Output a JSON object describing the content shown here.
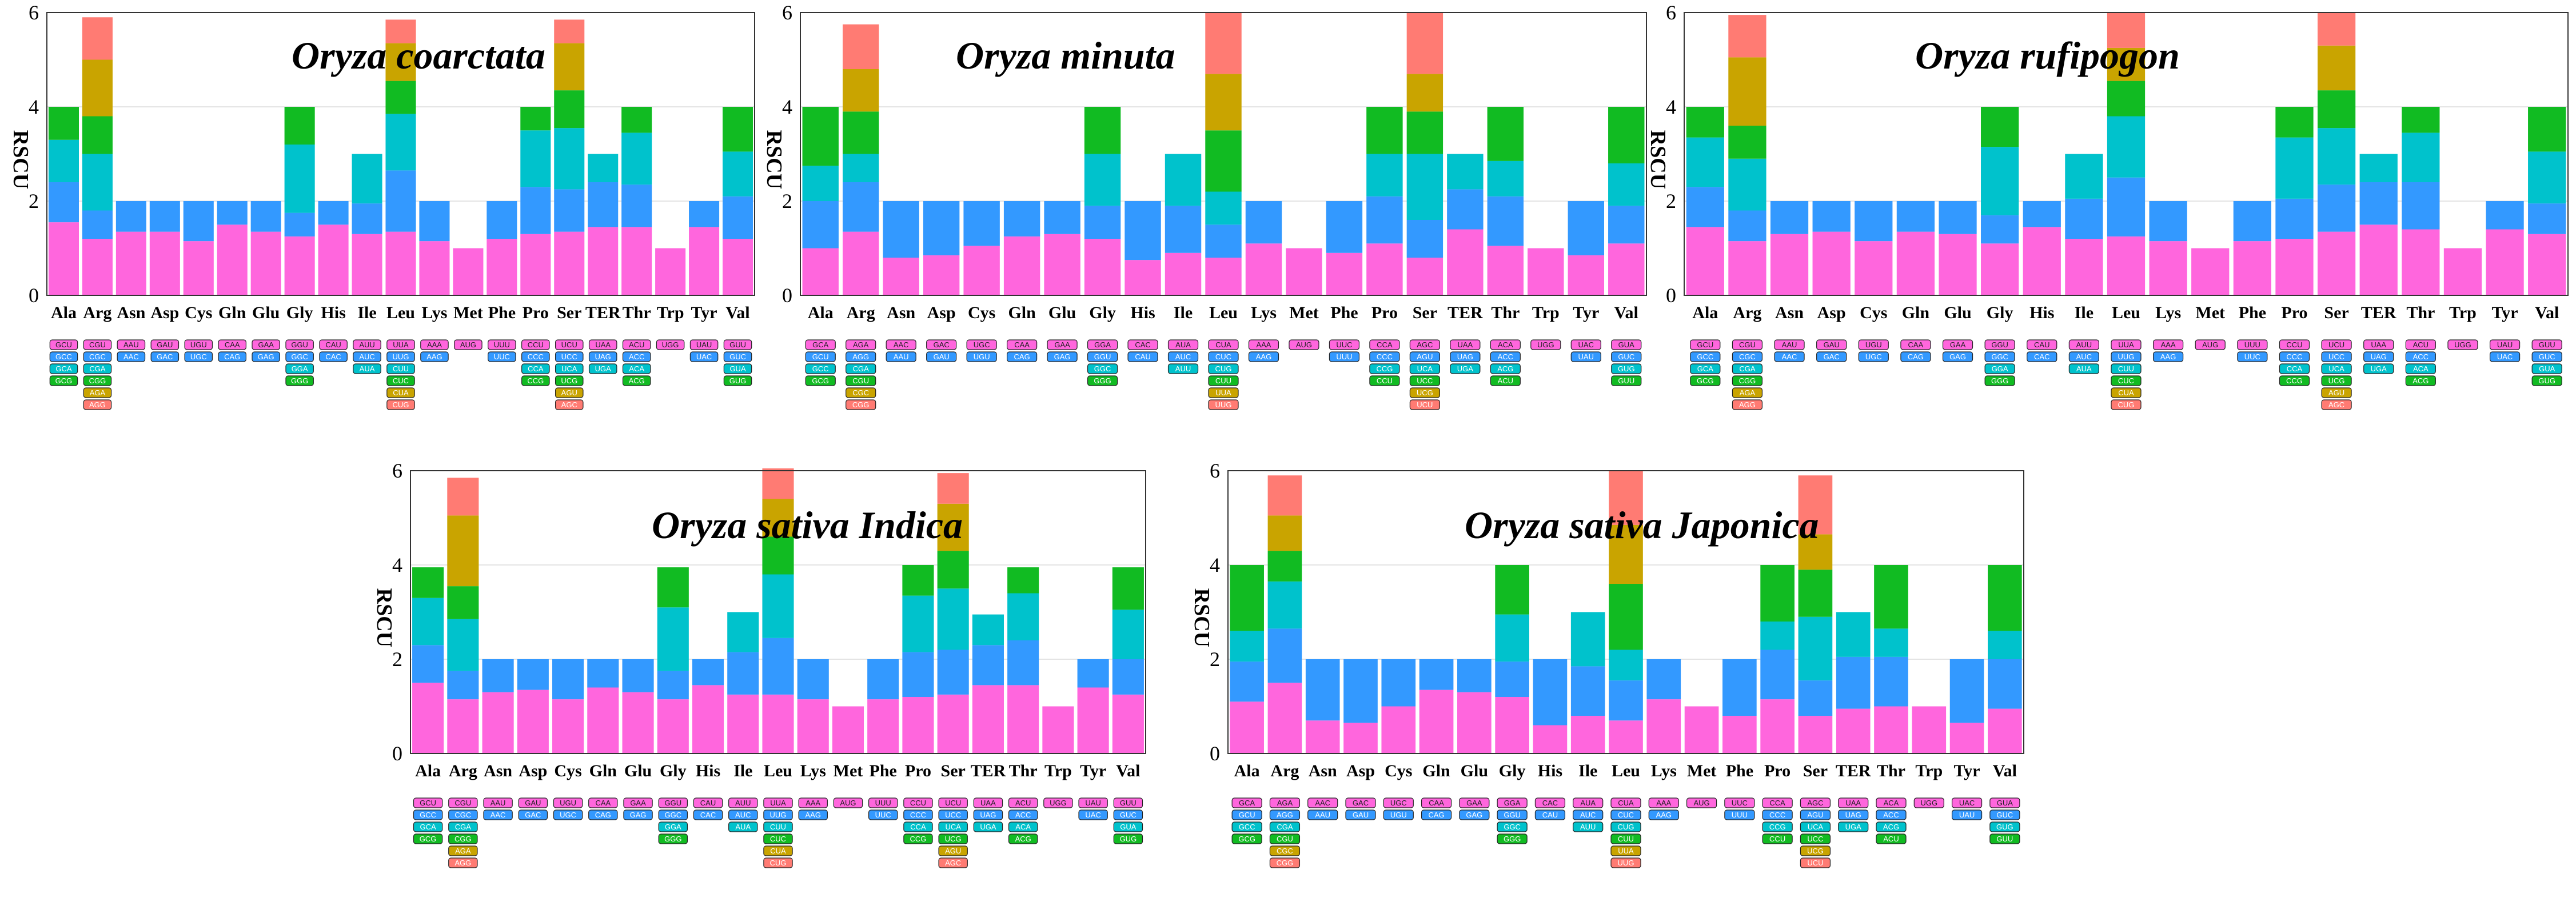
{
  "colors": {
    "c1": "#ff66dd",
    "c2": "#3399ff",
    "c3": "#00c2cc",
    "c4": "#11bb22",
    "c5": "#c9a400",
    "c6": "#ff7b73"
  },
  "y_axis_label": "RSCU",
  "y_ticks": [
    "0",
    "2",
    "4",
    "6"
  ],
  "chart_data": [
    {
      "type": "bar",
      "stacked": true,
      "title": "Oryza coarctata",
      "ylabel": "RSCU",
      "ylim": [
        0,
        6
      ],
      "categories": [
        "Ala",
        "Arg",
        "Asn",
        "Asp",
        "Cys",
        "Gln",
        "Glu",
        "Gly",
        "His",
        "Ile",
        "Leu",
        "Lys",
        "Met",
        "Phe",
        "Pro",
        "Ser",
        "TER",
        "Thr",
        "Trp",
        "Tyr",
        "Val"
      ],
      "stacks": [
        [
          1.55,
          0.85,
          0.9,
          0.7
        ],
        [
          1.2,
          0.6,
          1.2,
          0.8,
          1.2,
          0.9
        ],
        [
          1.35,
          0.65
        ],
        [
          1.35,
          0.65
        ],
        [
          1.15,
          0.85
        ],
        [
          1.5,
          0.5
        ],
        [
          1.35,
          0.65
        ],
        [
          1.25,
          0.5,
          1.45,
          0.8
        ],
        [
          1.5,
          0.5
        ],
        [
          1.3,
          0.65,
          1.05
        ],
        [
          1.35,
          1.3,
          1.2,
          0.7,
          0.8,
          0.5
        ],
        [
          1.15,
          0.85
        ],
        [
          1.0
        ],
        [
          1.2,
          0.8
        ],
        [
          1.3,
          1.0,
          1.2,
          0.5
        ],
        [
          1.35,
          0.9,
          1.3,
          0.8,
          1.0,
          0.5
        ],
        [
          1.45,
          0.95,
          0.6
        ],
        [
          1.45,
          0.9,
          1.1,
          0.55
        ],
        [
          1.0
        ],
        [
          1.45,
          0.55
        ],
        [
          1.2,
          0.9,
          0.95,
          0.95
        ]
      ],
      "codons": [
        [
          "GCU",
          "GCC",
          "GCA",
          "GCG"
        ],
        [
          "CGU",
          "CGC",
          "CGA",
          "CGG",
          "AGA",
          "AGG"
        ],
        [
          "AAU",
          "AAC"
        ],
        [
          "GAU",
          "GAC"
        ],
        [
          "UGU",
          "UGC"
        ],
        [
          "CAA",
          "CAG"
        ],
        [
          "GAA",
          "GAG"
        ],
        [
          "GGU",
          "GGC",
          "GGA",
          "GGG"
        ],
        [
          "CAU",
          "CAC"
        ],
        [
          "AUU",
          "AUC",
          "AUA"
        ],
        [
          "UUA",
          "UUG",
          "CUU",
          "CUC",
          "CUA",
          "CUG"
        ],
        [
          "AAA",
          "AAG"
        ],
        [
          "AUG"
        ],
        [
          "UUU",
          "UUC"
        ],
        [
          "CCU",
          "CCC",
          "CCA",
          "CCG"
        ],
        [
          "UCU",
          "UCC",
          "UCA",
          "UCG",
          "AGU",
          "AGC"
        ],
        [
          "UAA",
          "UAG",
          "UGA"
        ],
        [
          "ACU",
          "ACC",
          "ACA",
          "ACG"
        ],
        [
          "UGG"
        ],
        [
          "UAU",
          "UAC"
        ],
        [
          "GUU",
          "GUC",
          "GUA",
          "GUG"
        ]
      ]
    },
    {
      "type": "bar",
      "stacked": true,
      "title": "Oryza minuta",
      "ylabel": "RSCU",
      "ylim": [
        0,
        6
      ],
      "categories": [
        "Ala",
        "Arg",
        "Asn",
        "Asp",
        "Cys",
        "Gln",
        "Glu",
        "Gly",
        "His",
        "Ile",
        "Leu",
        "Lys",
        "Met",
        "Phe",
        "Pro",
        "Ser",
        "TER",
        "Thr",
        "Trp",
        "Tyr",
        "Val"
      ],
      "stacks": [
        [
          1.0,
          1.0,
          0.75,
          1.25
        ],
        [
          1.35,
          1.05,
          0.6,
          0.9,
          0.9,
          0.95
        ],
        [
          0.8,
          1.2
        ],
        [
          0.85,
          1.15
        ],
        [
          1.05,
          0.95
        ],
        [
          1.25,
          0.75
        ],
        [
          1.3,
          0.7
        ],
        [
          1.2,
          0.7,
          1.1,
          1.0
        ],
        [
          0.75,
          1.25
        ],
        [
          0.9,
          1.0,
          1.1
        ],
        [
          0.8,
          0.7,
          0.7,
          1.3,
          1.2,
          1.3
        ],
        [
          1.1,
          0.9
        ],
        [
          1.0
        ],
        [
          0.9,
          1.1
        ],
        [
          1.1,
          1.0,
          0.9,
          1.0
        ],
        [
          0.8,
          0.8,
          1.4,
          0.9,
          0.8,
          1.3
        ],
        [
          1.4,
          0.85,
          0.75
        ],
        [
          1.05,
          1.05,
          0.75,
          1.15
        ],
        [
          1.0
        ],
        [
          0.85,
          1.15
        ],
        [
          1.1,
          0.8,
          0.9,
          1.2
        ]
      ],
      "codons": [
        [
          "GCA",
          "GCU",
          "GCC",
          "GCG"
        ],
        [
          "AGA",
          "AGG",
          "CGA",
          "CGU",
          "CGC",
          "CGG"
        ],
        [
          "AAC",
          "AAU"
        ],
        [
          "GAC",
          "GAU"
        ],
        [
          "UGC",
          "UGU"
        ],
        [
          "CAA",
          "CAG"
        ],
        [
          "GAA",
          "GAG"
        ],
        [
          "GGA",
          "GGU",
          "GGC",
          "GGG"
        ],
        [
          "CAC",
          "CAU"
        ],
        [
          "AUA",
          "AUC",
          "AUU"
        ],
        [
          "CUA",
          "CUC",
          "CUG",
          "CUU",
          "UUA",
          "UUG"
        ],
        [
          "AAA",
          "AAG"
        ],
        [
          "AUG"
        ],
        [
          "UUC",
          "UUU"
        ],
        [
          "CCA",
          "CCC",
          "CCG",
          "CCU"
        ],
        [
          "AGC",
          "AGU",
          "UCA",
          "UCC",
          "UCG",
          "UCU"
        ],
        [
          "UAA",
          "UAG",
          "UGA"
        ],
        [
          "ACA",
          "ACC",
          "ACG",
          "ACU"
        ],
        [
          "UGG"
        ],
        [
          "UAC",
          "UAU"
        ],
        [
          "GUA",
          "GUC",
          "GUG",
          "GUU"
        ]
      ]
    },
    {
      "type": "bar",
      "stacked": true,
      "title": "Oryza rufipogon",
      "ylabel": "RSCU",
      "ylim": [
        0,
        6
      ],
      "categories": [
        "Ala",
        "Arg",
        "Asn",
        "Asp",
        "Cys",
        "Gln",
        "Glu",
        "Gly",
        "His",
        "Ile",
        "Leu",
        "Lys",
        "Met",
        "Phe",
        "Pro",
        "Ser",
        "TER",
        "Thr",
        "Trp",
        "Tyr",
        "Val"
      ],
      "stacks": [
        [
          1.45,
          0.85,
          1.05,
          0.65
        ],
        [
          1.15,
          0.65,
          1.1,
          0.7,
          1.45,
          0.9
        ],
        [
          1.3,
          0.7
        ],
        [
          1.35,
          0.65
        ],
        [
          1.15,
          0.85
        ],
        [
          1.35,
          0.65
        ],
        [
          1.3,
          0.7
        ],
        [
          1.1,
          0.6,
          1.45,
          0.85
        ],
        [
          1.45,
          0.55
        ],
        [
          1.2,
          0.85,
          0.95
        ],
        [
          1.25,
          1.25,
          1.3,
          0.75,
          0.7,
          0.75
        ],
        [
          1.15,
          0.85
        ],
        [
          1.0
        ],
        [
          1.15,
          0.85
        ],
        [
          1.2,
          0.85,
          1.3,
          0.65
        ],
        [
          1.35,
          1.0,
          1.2,
          0.8,
          0.95,
          0.7
        ],
        [
          1.5,
          0.9,
          0.6
        ],
        [
          1.4,
          1.0,
          1.05,
          0.55
        ],
        [
          1.0
        ],
        [
          1.4,
          0.6
        ],
        [
          1.3,
          0.65,
          1.1,
          0.95
        ]
      ],
      "codons": [
        [
          "GCU",
          "GCC",
          "GCA",
          "GCG"
        ],
        [
          "CGU",
          "CGC",
          "CGA",
          "CGG",
          "AGA",
          "AGG"
        ],
        [
          "AAU",
          "AAC"
        ],
        [
          "GAU",
          "GAC"
        ],
        [
          "UGU",
          "UGC"
        ],
        [
          "CAA",
          "CAG"
        ],
        [
          "GAA",
          "GAG"
        ],
        [
          "GGU",
          "GGC",
          "GGA",
          "GGG"
        ],
        [
          "CAU",
          "CAC"
        ],
        [
          "AUU",
          "AUC",
          "AUA"
        ],
        [
          "UUA",
          "UUG",
          "CUU",
          "CUC",
          "CUA",
          "CUG"
        ],
        [
          "AAA",
          "AAG"
        ],
        [
          "AUG"
        ],
        [
          "UUU",
          "UUC"
        ],
        [
          "CCU",
          "CCC",
          "CCA",
          "CCG"
        ],
        [
          "UCU",
          "UCC",
          "UCA",
          "UCG",
          "AGU",
          "AGC"
        ],
        [
          "UAA",
          "UAG",
          "UGA"
        ],
        [
          "ACU",
          "ACC",
          "ACA",
          "ACG"
        ],
        [
          "UGG"
        ],
        [
          "UAU",
          "UAC"
        ],
        [
          "GUU",
          "GUC",
          "GUA",
          "GUG"
        ]
      ]
    },
    {
      "type": "bar",
      "stacked": true,
      "title": "Oryza sativa Indica",
      "ylabel": "RSCU",
      "ylim": [
        0,
        6
      ],
      "categories": [
        "Ala",
        "Arg",
        "Asn",
        "Asp",
        "Cys",
        "Gln",
        "Glu",
        "Gly",
        "His",
        "Ile",
        "Leu",
        "Lys",
        "Met",
        "Phe",
        "Pro",
        "Ser",
        "TER",
        "Thr",
        "Trp",
        "Tyr",
        "Val"
      ],
      "stacks": [
        [
          1.5,
          0.8,
          1.0,
          0.65
        ],
        [
          1.15,
          0.6,
          1.1,
          0.7,
          1.5,
          0.8
        ],
        [
          1.3,
          0.7
        ],
        [
          1.35,
          0.65
        ],
        [
          1.15,
          0.85
        ],
        [
          1.4,
          0.6
        ],
        [
          1.3,
          0.7
        ],
        [
          1.15,
          0.6,
          1.35,
          0.85
        ],
        [
          1.45,
          0.55
        ],
        [
          1.25,
          0.9,
          0.85
        ],
        [
          1.25,
          1.2,
          1.35,
          0.8,
          0.8,
          0.65
        ],
        [
          1.15,
          0.85
        ],
        [
          1.0
        ],
        [
          1.15,
          0.85
        ],
        [
          1.2,
          0.95,
          1.2,
          0.65
        ],
        [
          1.25,
          0.95,
          1.3,
          0.8,
          1.0,
          0.65
        ],
        [
          1.45,
          0.85,
          0.65
        ],
        [
          1.45,
          0.95,
          1.0,
          0.55
        ],
        [
          1.0
        ],
        [
          1.4,
          0.6
        ],
        [
          1.25,
          0.75,
          1.05,
          0.9
        ]
      ],
      "codons": [
        [
          "GCU",
          "GCC",
          "GCA",
          "GCG"
        ],
        [
          "CGU",
          "CGC",
          "CGA",
          "CGG",
          "AGA",
          "AGG"
        ],
        [
          "AAU",
          "AAC"
        ],
        [
          "GAU",
          "GAC"
        ],
        [
          "UGU",
          "UGC"
        ],
        [
          "CAA",
          "CAG"
        ],
        [
          "GAA",
          "GAG"
        ],
        [
          "GGU",
          "GGC",
          "GGA",
          "GGG"
        ],
        [
          "CAU",
          "CAC"
        ],
        [
          "AUU",
          "AUC",
          "AUA"
        ],
        [
          "UUA",
          "UUG",
          "CUU",
          "CUC",
          "CUA",
          "CUG"
        ],
        [
          "AAA",
          "AAG"
        ],
        [
          "AUG"
        ],
        [
          "UUU",
          "UUC"
        ],
        [
          "CCU",
          "CCC",
          "CCA",
          "CCG"
        ],
        [
          "UCU",
          "UCC",
          "UCA",
          "UCG",
          "AGU",
          "AGC"
        ],
        [
          "UAA",
          "UAG",
          "UGA"
        ],
        [
          "ACU",
          "ACC",
          "ACA",
          "ACG"
        ],
        [
          "UGG"
        ],
        [
          "UAU",
          "UAC"
        ],
        [
          "GUU",
          "GUC",
          "GUA",
          "GUG"
        ]
      ]
    },
    {
      "type": "bar",
      "stacked": true,
      "title": "Oryza sativa Japonica",
      "ylabel": "RSCU",
      "ylim": [
        0,
        6
      ],
      "categories": [
        "Ala",
        "Arg",
        "Asn",
        "Asp",
        "Cys",
        "Gln",
        "Glu",
        "Gly",
        "His",
        "Ile",
        "Leu",
        "Lys",
        "Met",
        "Phe",
        "Pro",
        "Ser",
        "TER",
        "Thr",
        "Trp",
        "Tyr",
        "Val"
      ],
      "stacks": [
        [
          1.1,
          0.85,
          0.65,
          1.4
        ],
        [
          1.5,
          1.15,
          1.0,
          0.65,
          0.75,
          0.85
        ],
        [
          0.7,
          1.3
        ],
        [
          0.65,
          1.35
        ],
        [
          1.0,
          1.0
        ],
        [
          1.35,
          0.65
        ],
        [
          1.3,
          0.7
        ],
        [
          1.2,
          0.75,
          1.0,
          1.05
        ],
        [
          0.6,
          1.4
        ],
        [
          0.8,
          1.05,
          1.15
        ],
        [
          0.7,
          0.85,
          0.65,
          1.4,
          1.25,
          1.15
        ],
        [
          1.15,
          0.85
        ],
        [
          1.0
        ],
        [
          0.8,
          1.2
        ],
        [
          1.15,
          1.05,
          0.6,
          1.2
        ],
        [
          0.8,
          0.75,
          1.35,
          1.0,
          0.75,
          1.25
        ],
        [
          0.95,
          1.1,
          0.95
        ],
        [
          1.0,
          1.05,
          0.6,
          1.35
        ],
        [
          1.0
        ],
        [
          0.65,
          1.35
        ],
        [
          0.95,
          1.05,
          0.6,
          1.4
        ]
      ],
      "codons": [
        [
          "GCA",
          "GCU",
          "GCC",
          "GCG"
        ],
        [
          "AGA",
          "AGG",
          "CGA",
          "CGU",
          "CGC",
          "CGG"
        ],
        [
          "AAC",
          "AAU"
        ],
        [
          "GAC",
          "GAU"
        ],
        [
          "UGC",
          "UGU"
        ],
        [
          "CAA",
          "CAG"
        ],
        [
          "GAA",
          "GAG"
        ],
        [
          "GGA",
          "GGU",
          "GGC",
          "GGG"
        ],
        [
          "CAC",
          "CAU"
        ],
        [
          "AUA",
          "AUC",
          "AUU"
        ],
        [
          "CUA",
          "CUC",
          "CUG",
          "CUU",
          "UUA",
          "UUG"
        ],
        [
          "AAA",
          "AAG"
        ],
        [
          "AUG"
        ],
        [
          "UUC",
          "UUU"
        ],
        [
          "CCA",
          "CCC",
          "CCG",
          "CCU"
        ],
        [
          "AGC",
          "AGU",
          "UCA",
          "UCC",
          "UCG",
          "UCU"
        ],
        [
          "UAA",
          "UAG",
          "UGA"
        ],
        [
          "ACA",
          "ACC",
          "ACG",
          "ACU"
        ],
        [
          "UGG"
        ],
        [
          "UAC",
          "UAU"
        ],
        [
          "GUA",
          "GUC",
          "GUG",
          "GUU"
        ]
      ]
    }
  ]
}
